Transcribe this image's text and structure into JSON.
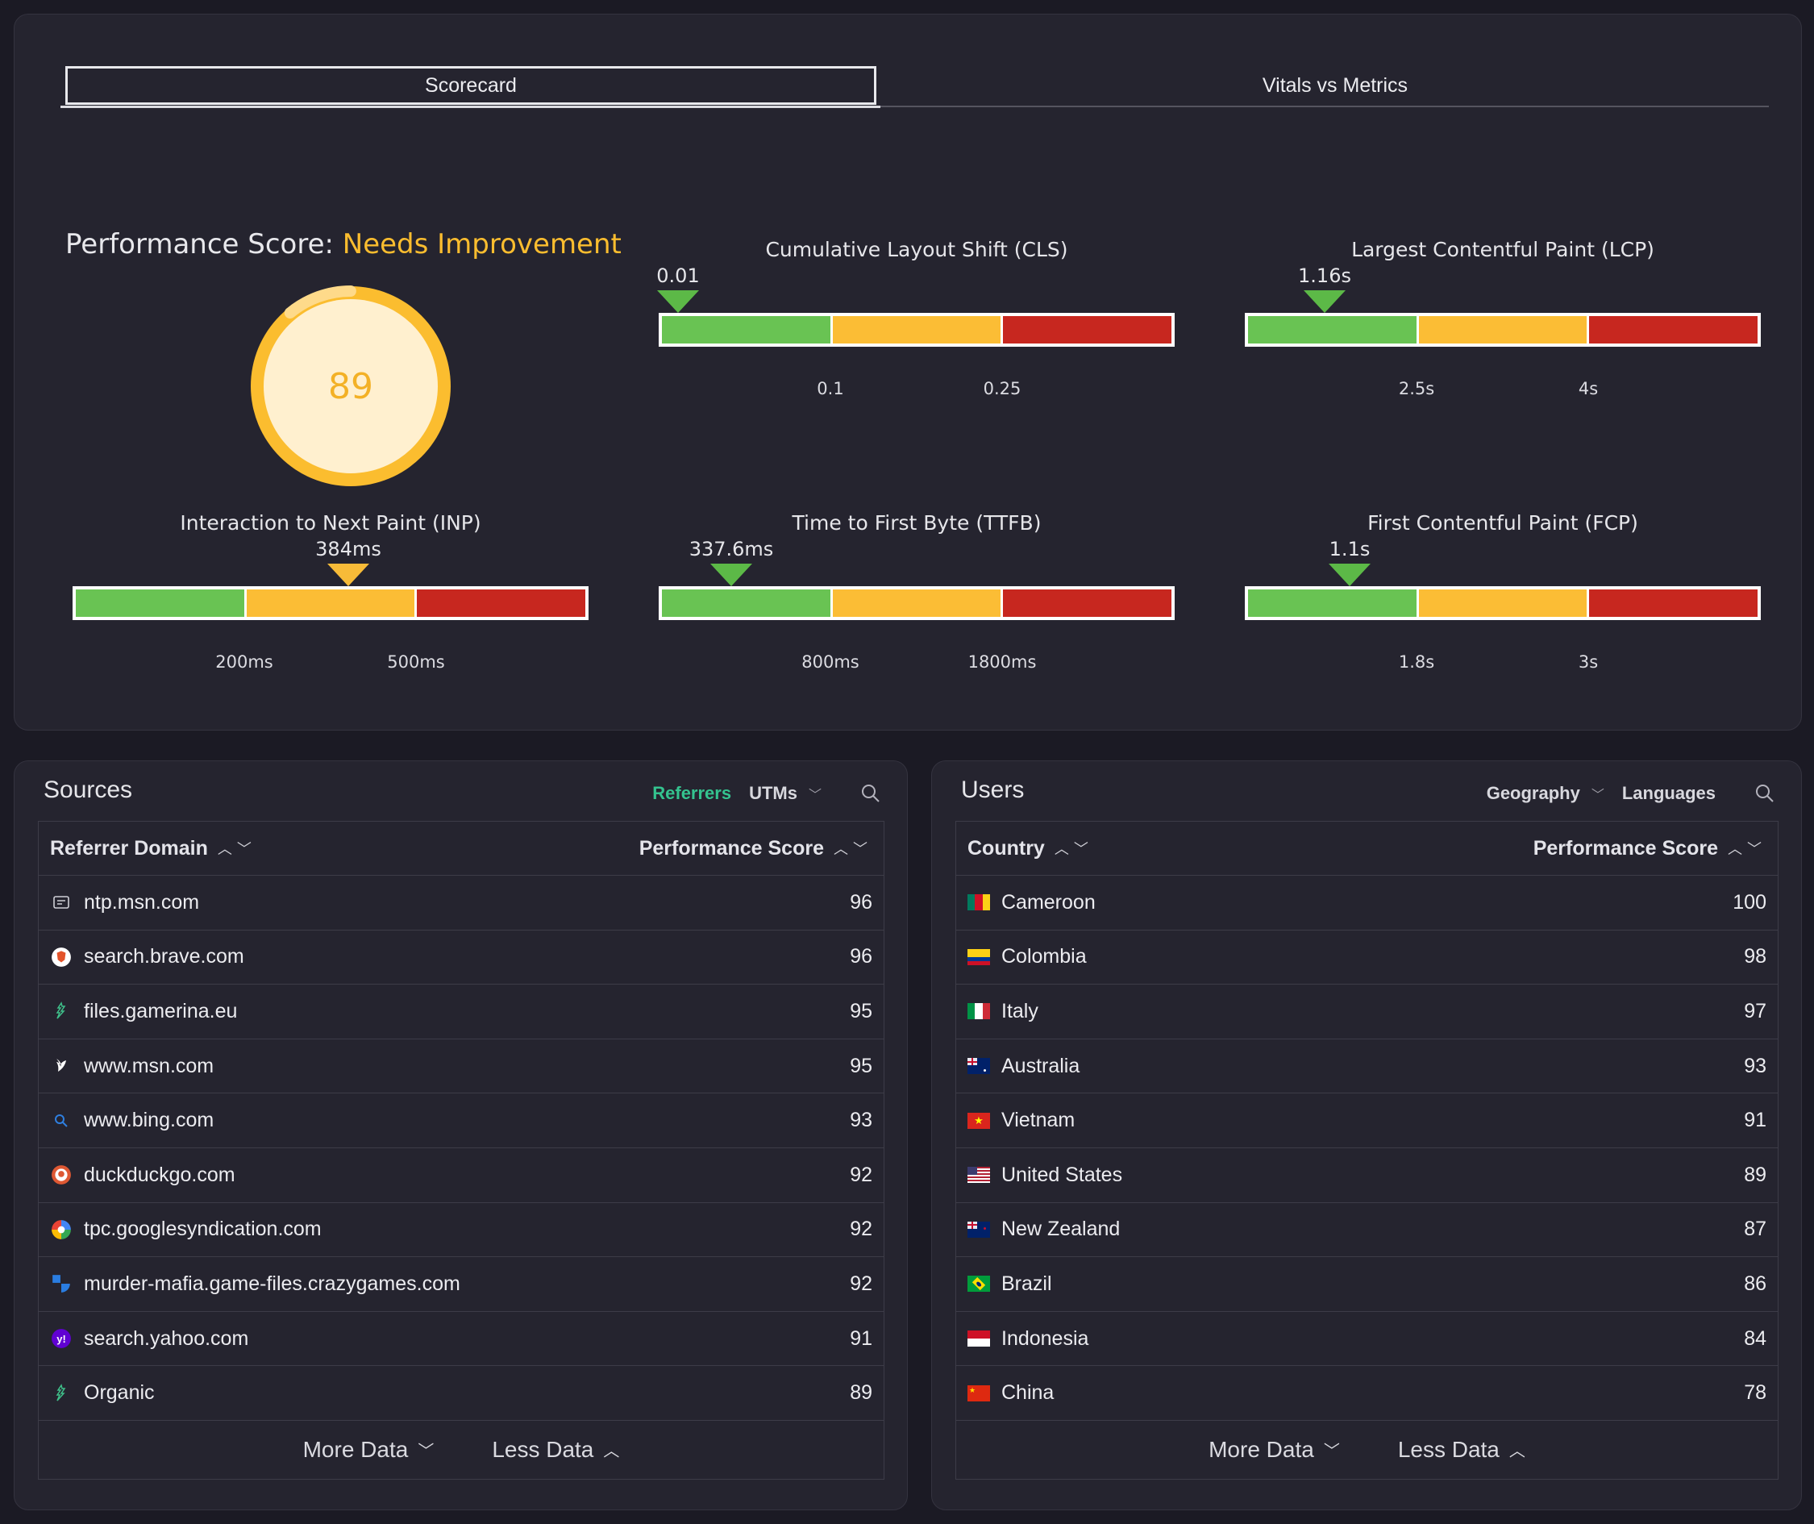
{
  "tabs": [
    {
      "label": "Scorecard",
      "active": true
    },
    {
      "label": "Vitals vs Metrics",
      "active": false
    }
  ],
  "performance": {
    "label": "Performance Score:",
    "status": "Needs Improvement",
    "score": "89",
    "score_value": 89,
    "status_color": "#fbbd2f"
  },
  "metrics": {
    "cls": {
      "title": "Cumulative Layout Shift (CLS)",
      "value": "0.01",
      "thresholds": [
        "0.1",
        "0.25"
      ],
      "marker_color": "green"
    },
    "lcp": {
      "title": "Largest Contentful Paint (LCP)",
      "value": "1.16s",
      "thresholds": [
        "2.5s",
        "4s"
      ],
      "marker_color": "green"
    },
    "inp": {
      "title": "Interaction to Next Paint (INP)",
      "value": "384ms",
      "thresholds": [
        "200ms",
        "500ms"
      ],
      "marker_color": "yellow"
    },
    "ttfb": {
      "title": "Time to First Byte (TTFB)",
      "value": "337.6ms",
      "thresholds": [
        "800ms",
        "1800ms"
      ],
      "marker_color": "green"
    },
    "fcp": {
      "title": "First Contentful Paint (FCP)",
      "value": "1.1s",
      "thresholds": [
        "1.8s",
        "3s"
      ],
      "marker_color": "green"
    }
  },
  "colors": {
    "good": "#69c353",
    "needs_improvement": "#fbbd35",
    "poor": "#c7271f",
    "accent": "#34c38f"
  },
  "sources": {
    "title": "Sources",
    "controls": {
      "referrers": "Referrers",
      "utms": "UTMs"
    },
    "columns": {
      "name": "Referrer Domain",
      "score": "Performance Score"
    },
    "rows": [
      {
        "name": "ntp.msn.com",
        "score": "96",
        "icon": "msn-ntp-icon"
      },
      {
        "name": "search.brave.com",
        "score": "96",
        "icon": "brave-icon"
      },
      {
        "name": "files.gamerina.eu",
        "score": "95",
        "icon": "default-site-icon"
      },
      {
        "name": "www.msn.com",
        "score": "95",
        "icon": "msn-butterfly-icon"
      },
      {
        "name": "www.bing.com",
        "score": "93",
        "icon": "bing-search-icon"
      },
      {
        "name": "duckduckgo.com",
        "score": "92",
        "icon": "duckduckgo-icon"
      },
      {
        "name": "tpc.googlesyndication.com",
        "score": "92",
        "icon": "google-syndication-icon"
      },
      {
        "name": "murder-mafia.game-files.crazygames.com",
        "score": "92",
        "icon": "crazygames-icon"
      },
      {
        "name": "search.yahoo.com",
        "score": "91",
        "icon": "yahoo-icon"
      },
      {
        "name": "Organic",
        "score": "89",
        "icon": "default-site-icon"
      }
    ],
    "footer": {
      "more": "More Data",
      "less": "Less Data"
    }
  },
  "users": {
    "title": "Users",
    "controls": {
      "geography": "Geography",
      "languages": "Languages"
    },
    "columns": {
      "name": "Country",
      "score": "Performance Score"
    },
    "rows": [
      {
        "name": "Cameroon",
        "score": "100",
        "flag": "cm"
      },
      {
        "name": "Colombia",
        "score": "98",
        "flag": "co"
      },
      {
        "name": "Italy",
        "score": "97",
        "flag": "it"
      },
      {
        "name": "Australia",
        "score": "93",
        "flag": "au"
      },
      {
        "name": "Vietnam",
        "score": "91",
        "flag": "vn"
      },
      {
        "name": "United States",
        "score": "89",
        "flag": "us"
      },
      {
        "name": "New Zealand",
        "score": "87",
        "flag": "nz"
      },
      {
        "name": "Brazil",
        "score": "86",
        "flag": "br"
      },
      {
        "name": "Indonesia",
        "score": "84",
        "flag": "id"
      },
      {
        "name": "China",
        "score": "78",
        "flag": "cn"
      }
    ],
    "footer": {
      "more": "More Data",
      "less": "Less Data"
    }
  }
}
